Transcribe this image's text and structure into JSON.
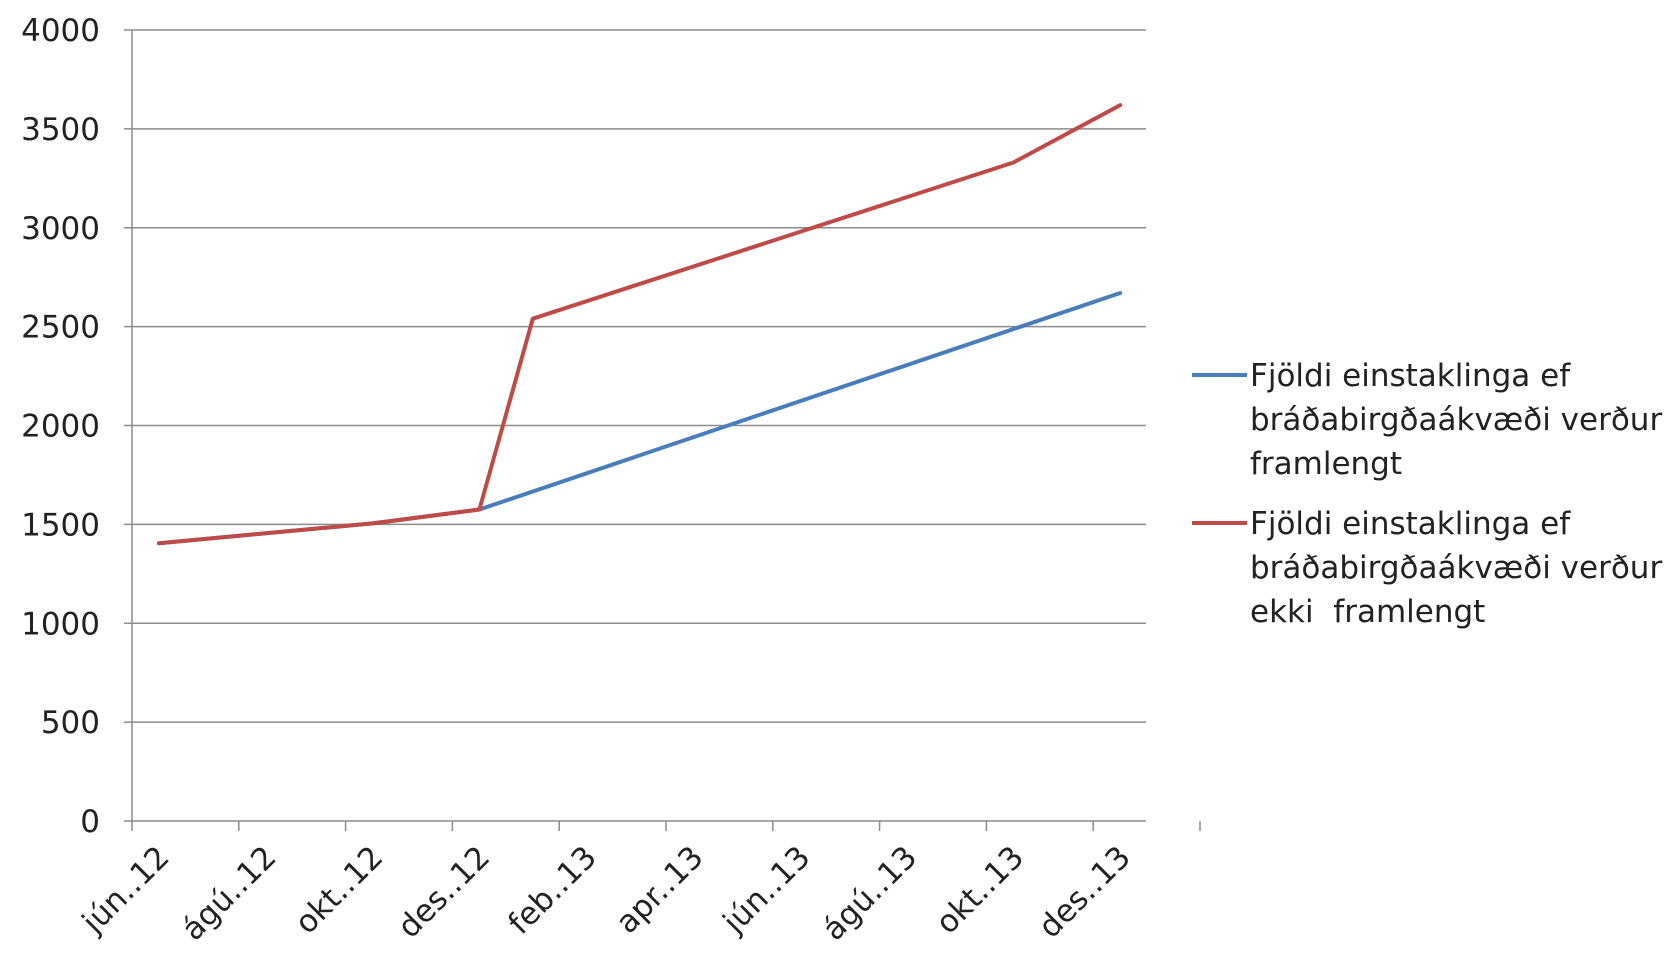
{
  "chart_data": {
    "type": "line",
    "title": "",
    "xlabel": "",
    "ylabel": "",
    "ylim": [
      0,
      4000
    ],
    "y_ticks": [
      "0",
      "500",
      "1000",
      "1500",
      "2000",
      "2500",
      "3000",
      "3500",
      "4000"
    ],
    "x_ticks": [
      "jún..12",
      "ágú..12",
      "okt..12",
      "des..12",
      "feb..13",
      "apr..13",
      "jún..13",
      "ágú..13",
      "okt..13",
      "des..13"
    ],
    "grid": "horizontal",
    "legend_position": "right",
    "series": [
      {
        "name_lines": [
          "Fjöldi einstaklinga ef",
          "bráðabirgðaákvæði verður",
          "framlengt"
        ],
        "color": "#4a7ebb",
        "points": [
          {
            "x": "jún..12",
            "y": 1405
          },
          {
            "x": "ágú..12",
            "y": 1455
          },
          {
            "x": "okt..12",
            "y": 1505
          },
          {
            "x": "des..12",
            "y": 1575
          },
          {
            "x": "des..13",
            "y": 2670
          }
        ]
      },
      {
        "name_lines": [
          "Fjöldi einstaklinga ef",
          "bráðabirgðaákvæði verður",
          "ekki  framlengt"
        ],
        "color": "#be4b48",
        "points": [
          {
            "x": "jún..12",
            "y": 1405
          },
          {
            "x": "ágú..12",
            "y": 1455
          },
          {
            "x": "okt..12",
            "y": 1505
          },
          {
            "x": "des..12",
            "y": 1575
          },
          {
            "x": "jan..13",
            "y": 2540
          },
          {
            "x": "okt..13",
            "y": 3330
          },
          {
            "x": "des..13",
            "y": 3620
          }
        ]
      }
    ]
  }
}
